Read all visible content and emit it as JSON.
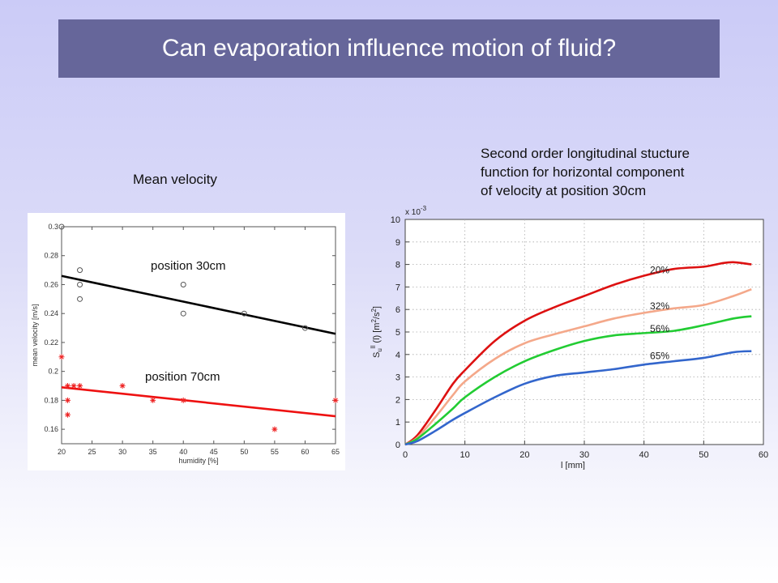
{
  "slide_title": "Can evaporation influence motion of fluid?",
  "left_caption": "Mean velocity",
  "right_caption_lines": [
    "Second order longitudinal stucture",
    "function for horizontal component",
    "of velocity at position 30cm"
  ],
  "chart_data": [
    {
      "type": "scatter",
      "title": "Mean velocity",
      "xlabel": "humidity [%]",
      "ylabel": "mean velocity [m/s]",
      "xlim": [
        20,
        65
      ],
      "ylim": [
        0.15,
        0.3
      ],
      "xticks": [
        20,
        25,
        30,
        35,
        40,
        45,
        50,
        55,
        60,
        65
      ],
      "yticks": [
        "0.16",
        "0.18",
        "0.2",
        "0.22",
        "0.24",
        "0.26",
        "0.28",
        "0.3"
      ],
      "grid": false,
      "series": [
        {
          "name": "position 30cm",
          "marker": "circle",
          "color": "#555555",
          "points": [
            [
              20,
              0.3
            ],
            [
              23,
              0.27
            ],
            [
              23,
              0.26
            ],
            [
              23,
              0.25
            ],
            [
              40,
              0.26
            ],
            [
              40,
              0.24
            ],
            [
              50,
              0.24
            ],
            [
              60,
              0.23
            ]
          ],
          "fit": {
            "x": [
              20,
              65
            ],
            "y": [
              0.266,
              0.226
            ],
            "color": "#000000"
          }
        },
        {
          "name": "position 70cm",
          "marker": "star",
          "color": "#ee2222",
          "points": [
            [
              20,
              0.21
            ],
            [
              21,
              0.19
            ],
            [
              21,
              0.18
            ],
            [
              21,
              0.17
            ],
            [
              22,
              0.19
            ],
            [
              23,
              0.19
            ],
            [
              30,
              0.19
            ],
            [
              35,
              0.18
            ],
            [
              40,
              0.18
            ],
            [
              55,
              0.16
            ],
            [
              65,
              0.18
            ]
          ],
          "fit": {
            "x": [
              20,
              65
            ],
            "y": [
              0.189,
              0.169
            ],
            "color": "#ee1111"
          }
        }
      ]
    },
    {
      "type": "line",
      "xlabel": "l [mm]",
      "ylabel_main": "S",
      "ylabel_sub": "u",
      "ylabel_sup": "ll",
      "ylabel_rest": " (l) [m",
      "ylabel_unit_sup1": "2",
      "ylabel_mid": "/s",
      "ylabel_unit_sup2": "2",
      "ylabel_end": "]",
      "scale_note": "x 10",
      "scale_exp": "-3",
      "xlim": [
        0,
        60
      ],
      "ylim": [
        0,
        10
      ],
      "xticks": [
        0,
        10,
        20,
        30,
        40,
        50,
        60
      ],
      "yticks": [
        0,
        1,
        2,
        3,
        4,
        5,
        6,
        7,
        8,
        9,
        10
      ],
      "grid": true,
      "series": [
        {
          "name": "20%",
          "color": "#dd1111",
          "x": [
            0,
            2,
            5,
            8,
            10,
            15,
            20,
            25,
            30,
            35,
            40,
            45,
            50,
            53,
            55,
            58
          ],
          "y": [
            0,
            0.4,
            1.5,
            2.7,
            3.3,
            4.6,
            5.5,
            6.1,
            6.6,
            7.1,
            7.5,
            7.8,
            7.9,
            8.05,
            8.1,
            8.0
          ]
        },
        {
          "name": "32%",
          "color": "#f4a88a",
          "x": [
            0,
            2,
            5,
            8,
            10,
            15,
            20,
            25,
            30,
            35,
            40,
            45,
            50,
            55,
            58
          ],
          "y": [
            0,
            0.3,
            1.2,
            2.2,
            2.8,
            3.8,
            4.5,
            4.9,
            5.25,
            5.6,
            5.85,
            6.05,
            6.2,
            6.6,
            6.9
          ]
        },
        {
          "name": "56%",
          "color": "#22cc33",
          "x": [
            0,
            2,
            5,
            8,
            10,
            15,
            20,
            25,
            30,
            35,
            40,
            45,
            50,
            55,
            58
          ],
          "y": [
            0,
            0.25,
            0.9,
            1.6,
            2.1,
            3.0,
            3.7,
            4.2,
            4.6,
            4.85,
            4.95,
            5.05,
            5.3,
            5.6,
            5.7
          ]
        },
        {
          "name": "65%",
          "color": "#3366cc",
          "x": [
            0,
            2,
            5,
            8,
            10,
            15,
            20,
            25,
            30,
            35,
            40,
            45,
            50,
            55,
            58
          ],
          "y": [
            0,
            0.15,
            0.6,
            1.1,
            1.4,
            2.1,
            2.7,
            3.05,
            3.2,
            3.35,
            3.55,
            3.7,
            3.85,
            4.1,
            4.15
          ]
        }
      ],
      "series_label_at": [
        {
          "name": "20%",
          "x": 41,
          "y": 7.6
        },
        {
          "name": "32%",
          "x": 41,
          "y": 6.0
        },
        {
          "name": "56%",
          "x": 41,
          "y": 5.0
        },
        {
          "name": "65%",
          "x": 41,
          "y": 3.8
        }
      ]
    }
  ]
}
